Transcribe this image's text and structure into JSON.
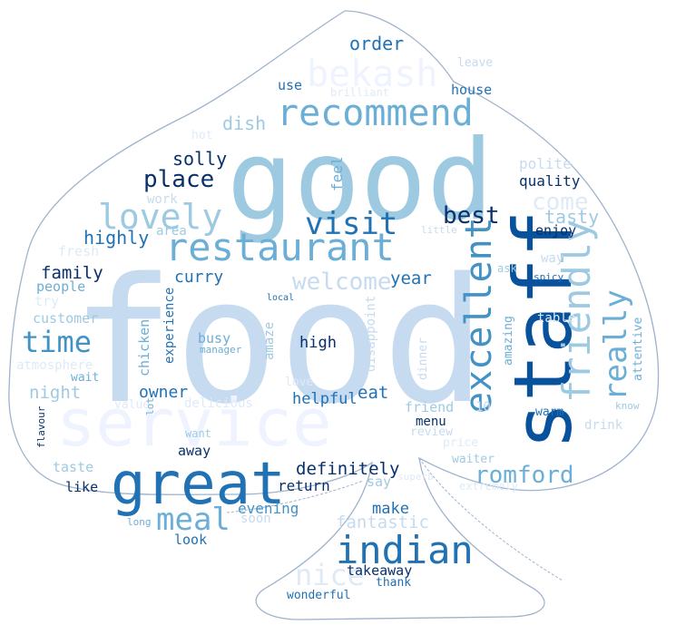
{
  "colors": {
    "outline": "#9fb3cc",
    "background": "#ffffff",
    "shape_fill": "#ffffff",
    "palette": [
      "#08306b",
      "#08519c",
      "#2171b5",
      "#4292c6",
      "#6baed6",
      "#9ecae1",
      "#c6dbef",
      "#deebf7",
      "#eff3ff"
    ]
  },
  "words": [
    {
      "text": "food",
      "color": "#c6dbef"
    },
    {
      "text": "good",
      "color": "#9ecae1"
    },
    {
      "text": "staff",
      "color": "#08519c"
    },
    {
      "text": "service",
      "color": "#eff3ff"
    },
    {
      "text": "great",
      "color": "#2171b5"
    },
    {
      "text": "restaurant",
      "color": "#6baed6"
    },
    {
      "text": "friendly",
      "color": "#9ecae1"
    },
    {
      "text": "indian",
      "color": "#2171b5"
    },
    {
      "text": "excellent",
      "color": "#4292c6"
    },
    {
      "text": "recommend",
      "color": "#6baed6"
    },
    {
      "text": "bekash",
      "color": "#eff3ff"
    },
    {
      "text": "lovely",
      "color": "#9ecae1"
    },
    {
      "text": "visit",
      "color": "#2171b5"
    },
    {
      "text": "time",
      "color": "#4292c6"
    },
    {
      "text": "meal",
      "color": "#6baed6"
    },
    {
      "text": "really",
      "color": "#6baed6"
    },
    {
      "text": "nice",
      "color": "#deebf7"
    },
    {
      "text": "place",
      "color": "#08306b"
    },
    {
      "text": "best",
      "color": "#08306b"
    },
    {
      "text": "welcome",
      "color": "#c6dbef"
    },
    {
      "text": "romford",
      "color": "#6baed6"
    },
    {
      "text": "come",
      "color": "#deebf7"
    },
    {
      "text": "order",
      "color": "#2171b5"
    },
    {
      "text": "solly",
      "color": "#08306b"
    },
    {
      "text": "dish",
      "color": "#9ecae1"
    },
    {
      "text": "highly",
      "color": "#2171b5"
    },
    {
      "text": "tasty",
      "color": "#9ecae1"
    },
    {
      "text": "family",
      "color": "#08306b"
    },
    {
      "text": "curry",
      "color": "#2171b5"
    },
    {
      "text": "year",
      "color": "#2171b5"
    },
    {
      "text": "definitely",
      "color": "#08306b"
    },
    {
      "text": "fantastic",
      "color": "#c6dbef"
    },
    {
      "text": "night",
      "color": "#9ecae1"
    },
    {
      "text": "owner",
      "color": "#2171b5"
    },
    {
      "text": "helpful",
      "color": "#2171b5"
    },
    {
      "text": "eat",
      "color": "#2171b5"
    },
    {
      "text": "high",
      "color": "#08306b"
    },
    {
      "text": "busy",
      "color": "#6baed6"
    },
    {
      "text": "feel",
      "color": "#6baed6"
    },
    {
      "text": "quality",
      "color": "#08306b"
    },
    {
      "text": "polite",
      "color": "#c6dbef"
    },
    {
      "text": "enjoy",
      "color": "#08306b"
    },
    {
      "text": "use",
      "color": "#2171b5"
    },
    {
      "text": "house",
      "color": "#2171b5"
    },
    {
      "text": "leave",
      "color": "#c6dbef"
    },
    {
      "text": "brilliant",
      "color": "#deebf7"
    },
    {
      "text": "hot",
      "color": "#deebf7"
    },
    {
      "text": "work",
      "color": "#c6dbef"
    },
    {
      "text": "area",
      "color": "#9ecae1"
    },
    {
      "text": "little",
      "color": "#c6dbef"
    },
    {
      "text": "fresh",
      "color": "#deebf7"
    },
    {
      "text": "people",
      "color": "#6baed6"
    },
    {
      "text": "try",
      "color": "#deebf7"
    },
    {
      "text": "customer",
      "color": "#9ecae1"
    },
    {
      "text": "atmosphere",
      "color": "#deebf7"
    },
    {
      "text": "wait",
      "color": "#6baed6"
    },
    {
      "text": "value",
      "color": "#deebf7"
    },
    {
      "text": "delicious",
      "color": "#deebf7"
    },
    {
      "text": "experience",
      "color": "#2171b5"
    },
    {
      "text": "chicken",
      "color": "#6baed6"
    },
    {
      "text": "amaze",
      "color": "#9ecae1"
    },
    {
      "text": "manager",
      "color": "#6baed6"
    },
    {
      "text": "local",
      "color": "#2171b5"
    },
    {
      "text": "disappoint",
      "color": "#c6dbef"
    },
    {
      "text": "dinner",
      "color": "#c6dbef"
    },
    {
      "text": "amazing",
      "color": "#6baed6"
    },
    {
      "text": "ask",
      "color": "#9ecae1"
    },
    {
      "text": "way",
      "color": "#c6dbef"
    },
    {
      "text": "spicy",
      "color": "#2171b5"
    },
    {
      "text": "table",
      "color": "#deebf7"
    },
    {
      "text": "attentive",
      "color": "#6baed6"
    },
    {
      "text": "warm",
      "color": "#2171b5"
    },
    {
      "text": "drink",
      "color": "#c6dbef"
    },
    {
      "text": "know",
      "color": "#9ecae1"
    },
    {
      "text": "friend",
      "color": "#9ecae1"
    },
    {
      "text": "review",
      "color": "#c6dbef"
    },
    {
      "text": "menu",
      "color": "#08306b"
    },
    {
      "text": "10",
      "color": "#c6dbef"
    },
    {
      "text": "price",
      "color": "#deebf7"
    },
    {
      "text": "waiter",
      "color": "#9ecae1"
    },
    {
      "text": "superb",
      "color": "#deebf7"
    },
    {
      "text": "extremely",
      "color": "#deebf7"
    },
    {
      "text": "lot",
      "color": "#6baed6"
    },
    {
      "text": "want",
      "color": "#9ecae1"
    },
    {
      "text": "flavour",
      "color": "#08306b"
    },
    {
      "text": "love",
      "color": "#deebf7"
    },
    {
      "text": "away",
      "color": "#08306b"
    },
    {
      "text": "taste",
      "color": "#9ecae1"
    },
    {
      "text": "like",
      "color": "#08306b"
    },
    {
      "text": "return",
      "color": "#08306b"
    },
    {
      "text": "say",
      "color": "#9ecae1"
    },
    {
      "text": "make",
      "color": "#2171b5"
    },
    {
      "text": "evening",
      "color": "#4292c6"
    },
    {
      "text": "soon",
      "color": "#c6dbef"
    },
    {
      "text": "long",
      "color": "#6baed6"
    },
    {
      "text": "look",
      "color": "#2171b5"
    },
    {
      "text": "takeaway",
      "color": "#08306b"
    },
    {
      "text": "thank",
      "color": "#2171b5"
    },
    {
      "text": "wonderful",
      "color": "#2171b5"
    }
  ]
}
